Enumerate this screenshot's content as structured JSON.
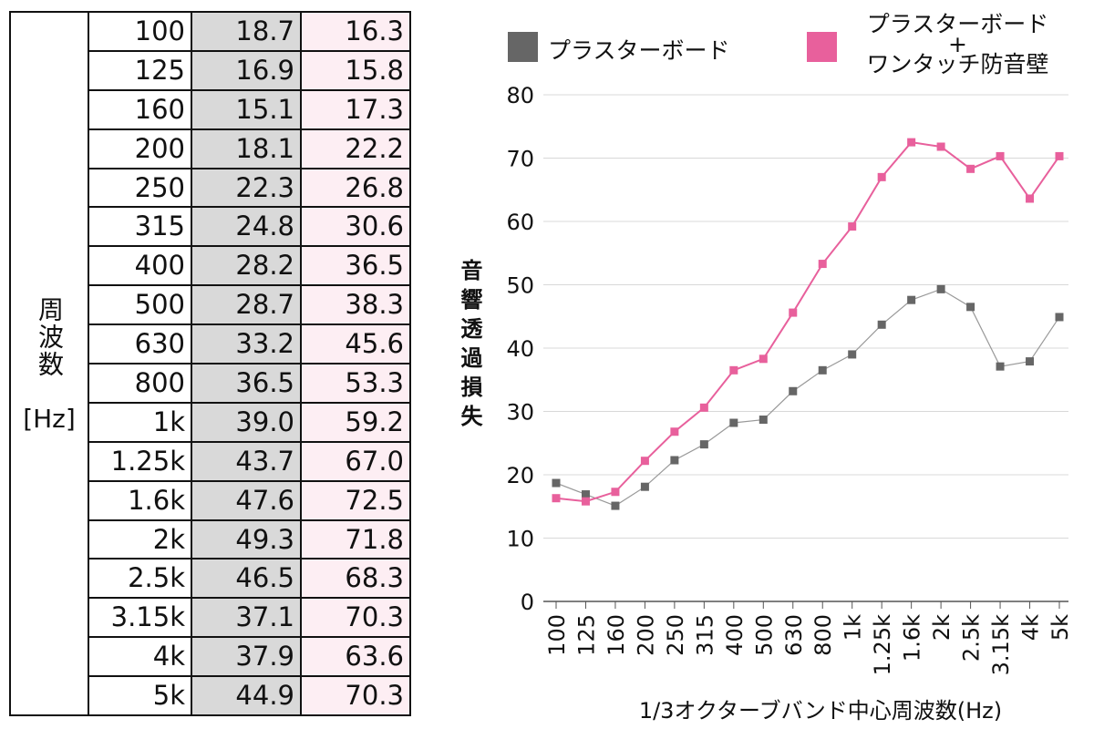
{
  "table": {
    "header_label": "周波数",
    "header_unit": "[Hz]"
  },
  "chart_data": {
    "type": "line",
    "y_label": "音響透過損失",
    "x_label": "1/3オクターブバンド中心周波数(Hz)",
    "categories": [
      "100",
      "125",
      "160",
      "200",
      "250",
      "315",
      "400",
      "500",
      "630",
      "800",
      "1k",
      "1.25k",
      "1.6k",
      "2k",
      "2.5k",
      "3.15k",
      "4k",
      "5k"
    ],
    "series": [
      {
        "name": "プラスターボード",
        "color": "#666666",
        "line_color": "#999999",
        "values": [
          18.7,
          16.9,
          15.1,
          18.1,
          22.3,
          24.8,
          28.2,
          28.7,
          33.2,
          36.5,
          39.0,
          43.7,
          47.6,
          49.3,
          46.5,
          37.1,
          37.9,
          44.9
        ],
        "value_labels": [
          "18.7",
          "16.9",
          "15.1",
          "18.1",
          "22.3",
          "24.8",
          "28.2",
          "28.7",
          "33.2",
          "36.5",
          "39.0",
          "43.7",
          "47.6",
          "49.3",
          "46.5",
          "37.1",
          "37.9",
          "44.9"
        ],
        "cell_color": "#d9d9d9"
      },
      {
        "name": "プラスターボード\n+\nワンタッチ防音壁",
        "color": "#e8609c",
        "line_color": "#e8609c",
        "values": [
          16.3,
          15.8,
          17.3,
          22.2,
          26.8,
          30.6,
          36.5,
          38.3,
          45.6,
          53.3,
          59.2,
          67.0,
          72.5,
          71.8,
          68.3,
          70.3,
          63.6,
          70.3
        ],
        "value_labels": [
          "16.3",
          "15.8",
          "17.3",
          "22.2",
          "26.8",
          "30.6",
          "36.5",
          "38.3",
          "45.6",
          "53.3",
          "59.2",
          "67.0",
          "72.5",
          "71.8",
          "68.3",
          "70.3",
          "63.6",
          "70.3"
        ],
        "cell_color": "#fdeef3"
      }
    ],
    "ylim": [
      0,
      80
    ],
    "yticks": [
      0,
      10,
      20,
      30,
      40,
      50,
      60,
      70,
      80
    ],
    "grid": true
  }
}
